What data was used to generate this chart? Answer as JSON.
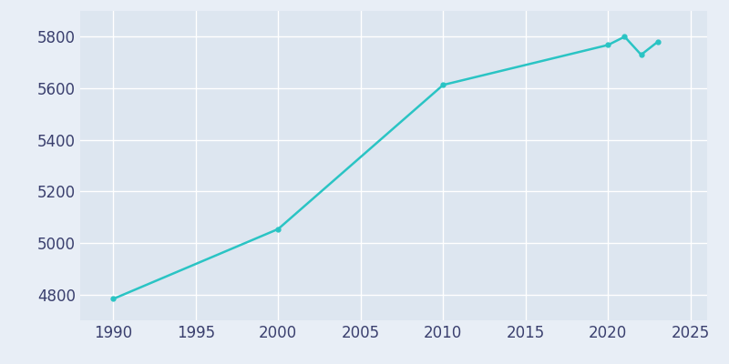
{
  "years": [
    1990,
    2000,
    2010,
    2020,
    2021,
    2022,
    2023
  ],
  "population": [
    4783,
    5054,
    5613,
    5768,
    5800,
    5730,
    5780
  ],
  "line_color": "#2ac4c4",
  "bg_color": "#E8EEF6",
  "plot_bg_color": "#dde6f0",
  "grid_color": "#FFFFFF",
  "text_color": "#3a3f6e",
  "ylim": [
    4700,
    5900
  ],
  "xlim": [
    1988,
    2026
  ],
  "yticks": [
    4800,
    5000,
    5200,
    5400,
    5600,
    5800
  ],
  "xticks": [
    1990,
    1995,
    2000,
    2005,
    2010,
    2015,
    2020,
    2025
  ],
  "linewidth": 1.8,
  "marker": "o",
  "markersize": 3.5,
  "tick_fontsize": 12
}
